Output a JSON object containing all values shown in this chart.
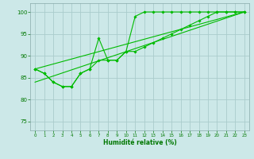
{
  "title": "",
  "xlabel": "Humidité relative (%)",
  "ylabel": "",
  "bg_color": "#cce8e8",
  "grid_color": "#aacccc",
  "line_color": "#00bb00",
  "marker_color": "#00bb00",
  "xlim": [
    -0.5,
    23.5
  ],
  "ylim": [
    73,
    102
  ],
  "yticks": [
    75,
    80,
    85,
    90,
    95,
    100
  ],
  "xticks": [
    0,
    1,
    2,
    3,
    4,
    5,
    6,
    7,
    8,
    9,
    10,
    11,
    12,
    13,
    14,
    15,
    16,
    17,
    18,
    19,
    20,
    21,
    22,
    23
  ],
  "series1_x": [
    0,
    1,
    2,
    3,
    4,
    5,
    6,
    7,
    8,
    9,
    10,
    11,
    12,
    13,
    14,
    15,
    16,
    17,
    18,
    19,
    20,
    21,
    22,
    23
  ],
  "series1_y": [
    87,
    86,
    84,
    83,
    83,
    86,
    87,
    94,
    89,
    89,
    91,
    99,
    100,
    100,
    100,
    100,
    100,
    100,
    100,
    100,
    100,
    100,
    100,
    100
  ],
  "series2_x": [
    0,
    1,
    2,
    3,
    4,
    5,
    6,
    7,
    8,
    9,
    10,
    11,
    12,
    13,
    14,
    15,
    16,
    17,
    18,
    19,
    20,
    21,
    22,
    23
  ],
  "series2_y": [
    87,
    86,
    84,
    83,
    83,
    86,
    87,
    89,
    89,
    89,
    91,
    91,
    92,
    93,
    94,
    95,
    96,
    97,
    98,
    99,
    100,
    100,
    100,
    100
  ],
  "series3_x": [
    0,
    23
  ],
  "series3_y": [
    87,
    100
  ],
  "series4_x": [
    0,
    23
  ],
  "series4_y": [
    84,
    100
  ]
}
